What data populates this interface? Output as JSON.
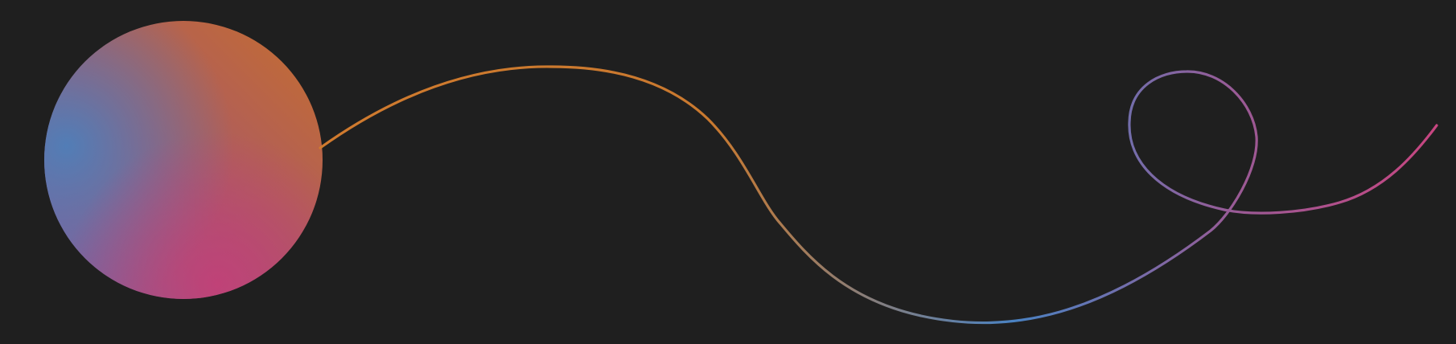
{
  "canvas": {
    "background": "#1f1f1f"
  },
  "orb": {
    "shape": "gradient-circle",
    "colors": {
      "orange": "#c66e2c",
      "blue": "#4e7fb9",
      "violet": "#7a5fa8",
      "pink": "#c43f77"
    }
  },
  "curve": {
    "shape": "looping-gradient-line",
    "colors": [
      "#d07a2e",
      "#c9792f",
      "#4a82c2",
      "#9a5a95",
      "#c84580"
    ]
  }
}
